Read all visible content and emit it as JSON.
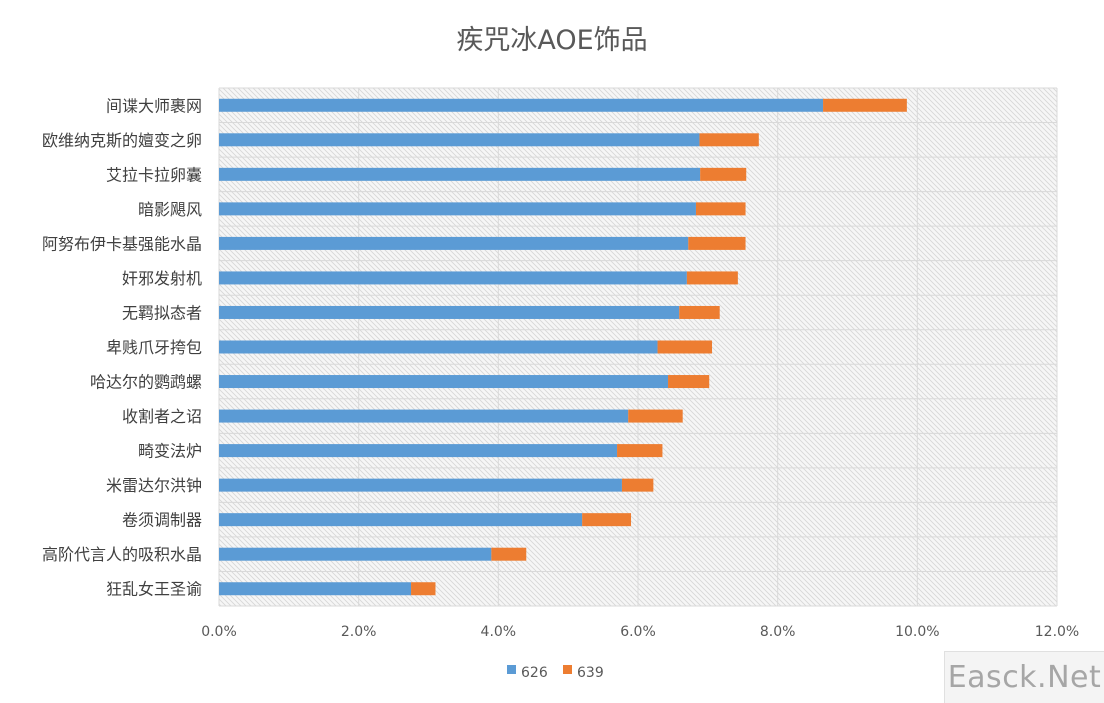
{
  "chart_data": {
    "type": "bar",
    "orientation": "horizontal",
    "stacked": true,
    "title": "疾咒冰AOE饰品",
    "categories": [
      "间谍大师裹网",
      "欧维纳克斯的嬗变之卵",
      "艾拉卡拉卵囊",
      "暗影飓风",
      "阿努布伊卡基强能水晶",
      "奸邪发射机",
      "无羁拟态者",
      "卑贱爪牙挎包",
      "哈达尔的鹦鹉螺",
      "收割者之诏",
      "畸变法炉",
      "米雷达尔洪钟",
      "卷须调制器",
      "高阶代言人的吸积水晶",
      "狂乱女王圣谕"
    ],
    "series": [
      {
        "name": "626",
        "color": "#5b9bd5",
        "values": [
          8.65,
          6.88,
          6.89,
          6.83,
          6.72,
          6.7,
          6.59,
          6.28,
          6.43,
          5.86,
          5.7,
          5.77,
          5.2,
          3.9,
          2.75
        ]
      },
      {
        "name": "639",
        "color": "#ed7d31",
        "values": [
          1.2,
          0.85,
          0.66,
          0.71,
          0.82,
          0.73,
          0.58,
          0.78,
          0.59,
          0.78,
          0.65,
          0.45,
          0.7,
          0.5,
          0.35
        ]
      }
    ],
    "xlim": [
      0,
      12
    ],
    "xticks": [
      "0.0%",
      "2.0%",
      "4.0%",
      "6.0%",
      "8.0%",
      "10.0%",
      "12.0%"
    ],
    "grid": true,
    "legend_position": "bottom"
  },
  "watermark": "Easck.Net"
}
